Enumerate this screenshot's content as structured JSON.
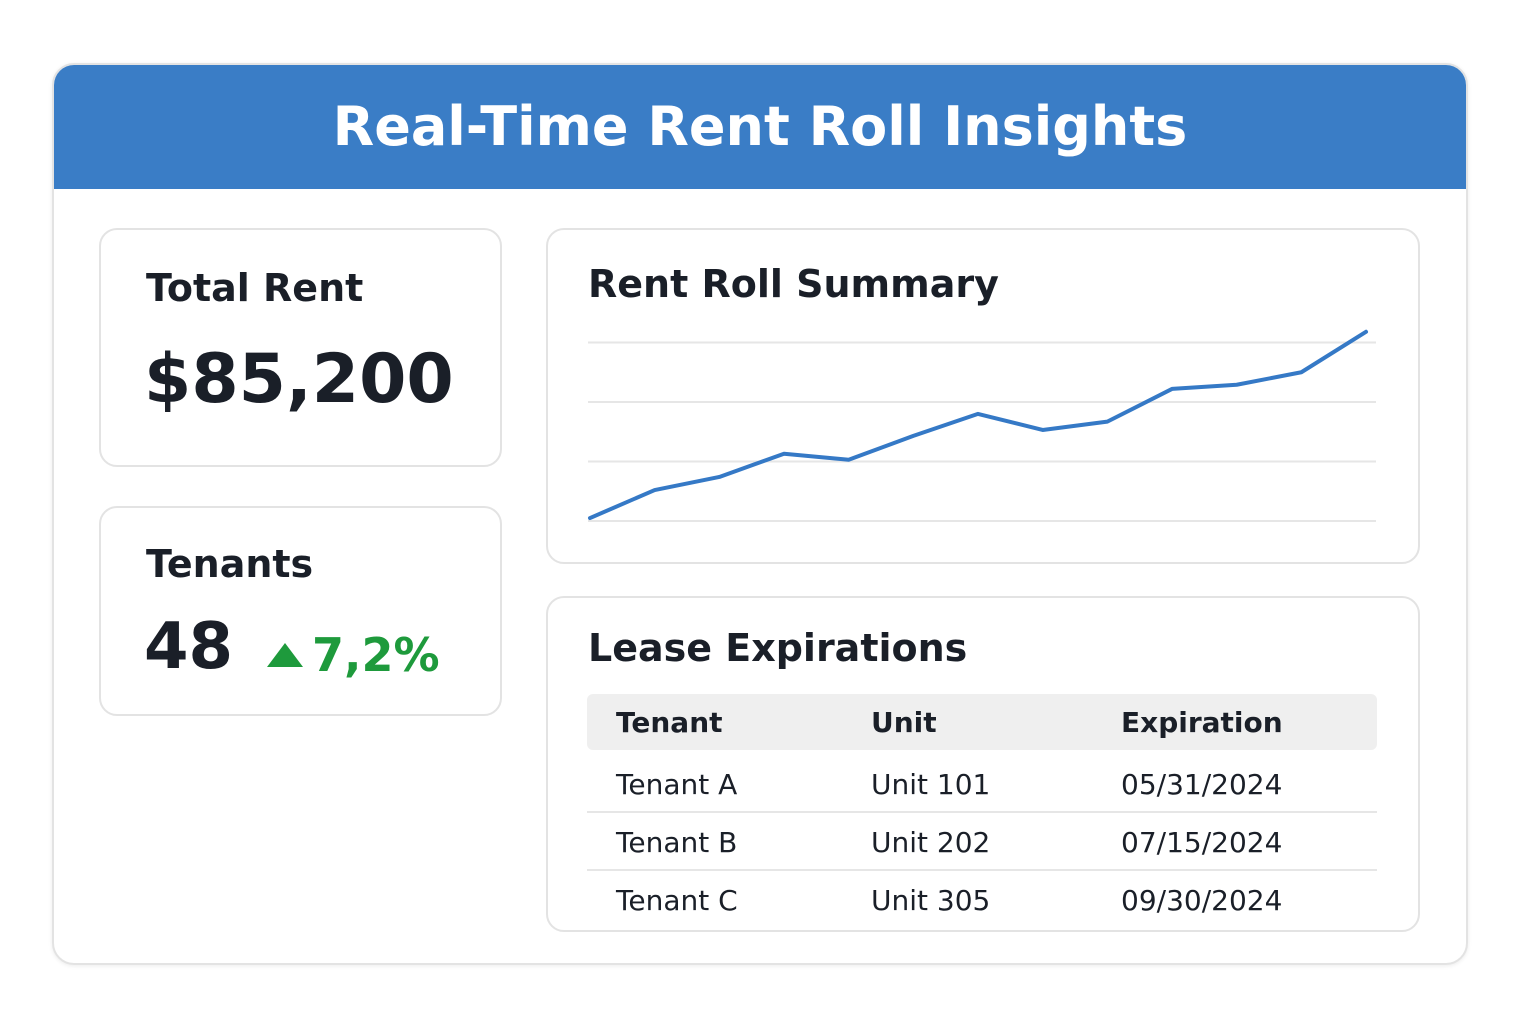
{
  "header": {
    "title": "Real-Time Rent Roll Insights"
  },
  "total_rent": {
    "label": "Total Rent",
    "value": "$85,200"
  },
  "tenants": {
    "label": "Tenants",
    "value": "48",
    "change": "7,2%"
  },
  "chart_data": {
    "type": "line",
    "title": "Rent Roll Summary",
    "categories": [
      null,
      null,
      null,
      null,
      null,
      null,
      null,
      null,
      null,
      null,
      null,
      null,
      null
    ],
    "series": [
      {
        "color": "#3579c6",
        "values": [
          0.05,
          0.52,
          0.74,
          1.13,
          1.03,
          1.43,
          1.8,
          1.53,
          1.67,
          2.22,
          2.29,
          2.5,
          3.18
        ]
      }
    ],
    "ylim": [
      0,
      3.2
    ],
    "yticks": [
      0,
      1,
      2,
      3
    ],
    "grid": true
  },
  "lease_expirations": {
    "title": "Lease Expirations",
    "table": {
      "header": [
        "Tenant",
        "Unit",
        "Expiration"
      ],
      "rows": [
        [
          "Tenant A",
          "Unit 101",
          "05/31/2024"
        ],
        [
          "Tenant B",
          "Unit 202",
          "07/15/2024"
        ],
        [
          "Tenant C",
          "Unit 305",
          "09/30/2024"
        ]
      ]
    }
  }
}
